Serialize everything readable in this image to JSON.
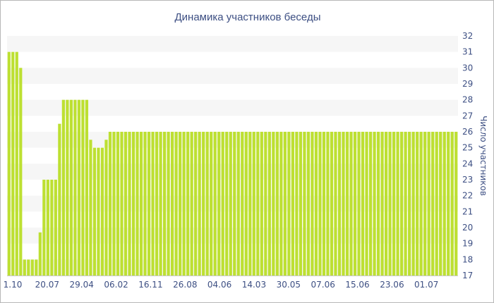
{
  "chart_data": {
    "type": "bar",
    "title": "Динамика участников беседы",
    "xlabel": "",
    "ylabel": "Число участников",
    "ylim": [
      17,
      32
    ],
    "yticks": [
      17,
      18,
      19,
      20,
      21,
      22,
      23,
      24,
      25,
      26,
      27,
      28,
      29,
      30,
      31,
      32
    ],
    "y_axis_side": "right",
    "x_tick_labels": [
      "1.10",
      "20.07",
      "29.04",
      "06.02",
      "16.11",
      "26.08",
      "04.06",
      "14.03",
      "30.05",
      "07.06",
      "15.06",
      "23.06",
      "01.07"
    ],
    "grid": "alternating horizontal bands",
    "legend": "none",
    "bar_color": "#bde032",
    "band_color": "#f6f6f6",
    "text_color": "#3d4f83",
    "values": [
      31,
      31,
      31,
      30,
      18,
      18,
      18,
      18,
      19.7,
      23,
      23,
      23,
      23,
      26.5,
      28,
      28,
      28,
      28,
      28,
      28,
      28,
      25.5,
      25,
      25,
      25,
      25.5,
      26,
      26,
      26,
      26,
      26,
      26,
      26,
      26,
      26,
      26,
      26,
      26,
      26,
      26,
      26,
      26,
      26,
      26,
      26,
      26,
      26,
      26,
      26,
      26,
      26,
      26,
      26,
      26,
      26,
      26,
      26,
      26,
      26,
      26,
      26,
      26,
      26,
      26,
      26,
      26,
      26,
      26,
      26,
      26,
      26,
      26,
      26,
      26,
      26,
      26,
      26,
      26,
      26,
      26,
      26,
      26,
      26,
      26,
      26,
      26,
      26,
      26,
      26,
      26,
      26,
      26,
      26,
      26,
      26,
      26,
      26,
      26,
      26,
      26,
      26,
      26,
      26,
      26,
      26,
      26,
      26,
      26,
      26,
      26,
      26,
      26,
      26,
      26,
      26,
      26
    ]
  }
}
